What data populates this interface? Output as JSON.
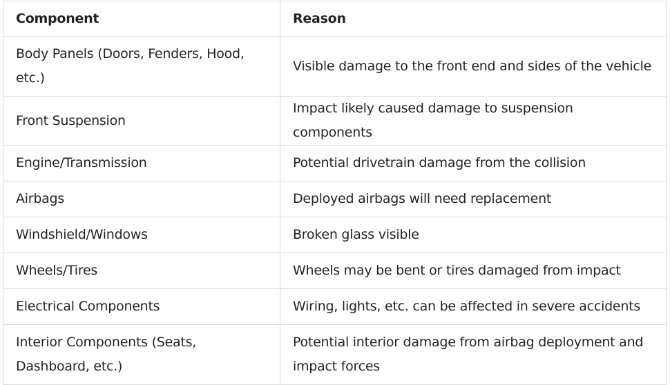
{
  "table": {
    "headers": [
      "Component",
      "Reason"
    ],
    "rows": [
      [
        "Body Panels (Doors, Fenders, Hood, etc.)",
        "Visible damage to the front end and sides of the vehicle"
      ],
      [
        "Front Suspension",
        "Impact likely caused damage to suspension components"
      ],
      [
        "Engine/Transmission",
        "Potential drivetrain damage from the collision"
      ],
      [
        "Airbags",
        "Deployed airbags will need replacement"
      ],
      [
        "Windshield/Windows",
        "Broken glass visible"
      ],
      [
        "Wheels/Tires",
        "Wheels may be bent or tires damaged from impact"
      ],
      [
        "Electrical Components",
        "Wiring, lights, etc. can be affected in severe accidents"
      ],
      [
        "Interior Components (Seats, Dashboard, etc.)",
        "Potential interior damage from airbag deployment and impact forces"
      ]
    ]
  }
}
